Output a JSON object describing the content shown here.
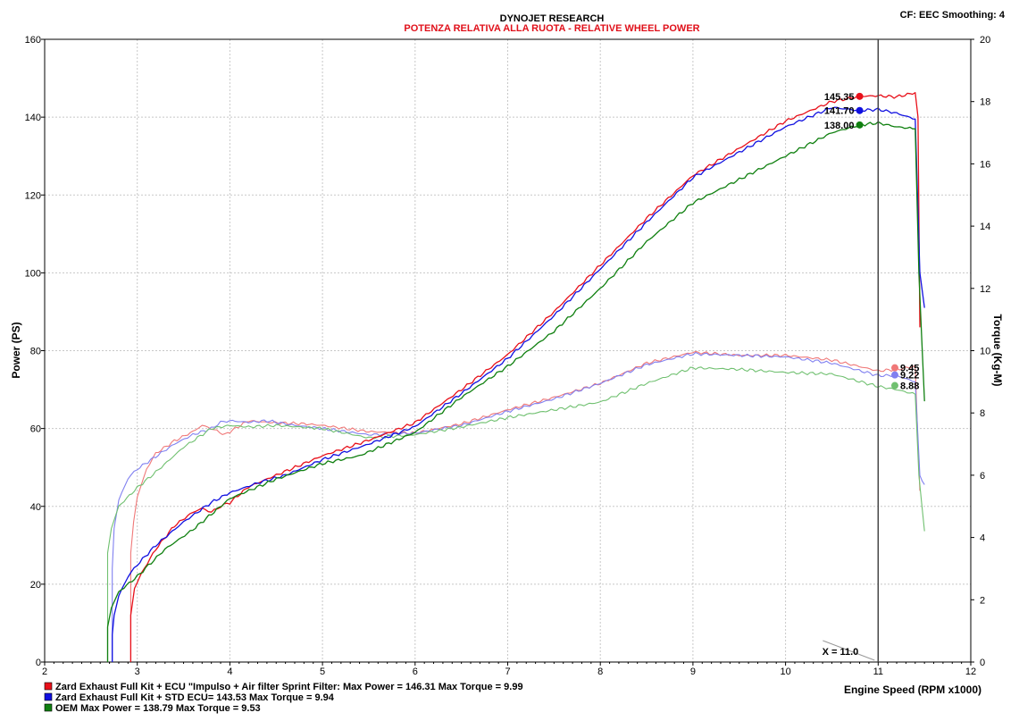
{
  "header": {
    "title": "DYNOJET RESEARCH",
    "subtitle": "POTENZA RELATIVA ALLA RUOTA - RELATIVE WHEEL POWER",
    "settings": "CF: EEC  Smoothing: 4"
  },
  "cursor_label": "X = 11.0",
  "legend": [
    {
      "text": "Zard Exhaust Full Kit + ECU \"Impulso + Air filter Sprint Filter: Max Power = 146.31    Max Torque = 9.99",
      "color": "#e8101a"
    },
    {
      "text": "Zard Exhaust Full Kit + STD ECU= 143.53    Max Torque = 9.94",
      "color": "#1010e0"
    },
    {
      "text": "OEM  Max Power = 138.79    Max Torque = 9.53",
      "color": "#108010"
    }
  ],
  "chart_data": {
    "type": "line",
    "title": "DYNOJET RESEARCH",
    "subtitle": "POTENZA RELATIVA ALLA RUOTA - RELATIVE WHEEL POWER",
    "xlabel": "Engine Speed (RPM x1000)",
    "ylabel": "Power (PS)",
    "y2label": "Torque (Kg-M)",
    "xlim": [
      2,
      12
    ],
    "ylim": [
      0,
      160
    ],
    "y2lim": [
      0,
      20
    ],
    "x_ticks": [
      2,
      3,
      4,
      5,
      6,
      7,
      8,
      9,
      10,
      11,
      12
    ],
    "y_ticks": [
      0,
      20,
      40,
      60,
      80,
      100,
      120,
      140,
      160
    ],
    "y2_ticks": [
      0,
      2,
      4,
      6,
      8,
      10,
      12,
      14,
      16,
      18,
      20
    ],
    "grid": true,
    "cursor_x": 11.0,
    "series": [
      {
        "color": "#e8101a",
        "axis": "power",
        "x": [
          2.93,
          2.93,
          2.97,
          3.05,
          3.2,
          3.4,
          3.6,
          3.7,
          3.8,
          3.9,
          4.0,
          4.2,
          4.5,
          5.0,
          5.5,
          6.0,
          6.5,
          7.0,
          7.5,
          8.0,
          8.5,
          9.0,
          9.5,
          10.0,
          10.5,
          10.8,
          11.0,
          11.2,
          11.4,
          11.43,
          11.45
        ],
        "y": [
          0,
          12,
          19,
          23,
          29,
          35,
          38.5,
          39.5,
          38.5,
          40,
          41,
          45,
          48,
          53,
          57,
          61.5,
          70,
          79,
          90,
          102,
          114,
          125,
          132,
          139,
          144,
          145.35,
          145.5,
          145.2,
          146.3,
          140,
          86
        ]
      },
      {
        "color": "#1010e0",
        "axis": "power",
        "x": [
          2.73,
          2.73,
          2.75,
          2.8,
          2.9,
          3.0,
          3.2,
          3.5,
          3.8,
          4.0,
          4.3,
          4.6,
          5.0,
          5.5,
          6.0,
          6.5,
          7.0,
          7.5,
          8.0,
          8.5,
          9.0,
          9.5,
          10.0,
          10.5,
          10.8,
          11.0,
          11.2,
          11.4,
          11.45,
          11.5
        ],
        "y": [
          0,
          7,
          12,
          17,
          22,
          25,
          30,
          36,
          41,
          43.5,
          46,
          48,
          52,
          56,
          60.5,
          69,
          78,
          89,
          101,
          113,
          124.5,
          131,
          137.5,
          142.5,
          141.7,
          142,
          141,
          139.5,
          100,
          91
        ]
      },
      {
        "color": "#108010",
        "axis": "power",
        "x": [
          2.68,
          2.68,
          2.72,
          2.8,
          3.0,
          3.3,
          3.6,
          4.0,
          4.5,
          5.0,
          5.4,
          6.0,
          6.5,
          7.0,
          7.5,
          8.0,
          8.5,
          9.0,
          9.5,
          10.0,
          10.5,
          10.8,
          11.0,
          11.2,
          11.4,
          11.44,
          11.5
        ],
        "y": [
          0,
          9,
          14,
          18,
          22,
          29,
          34,
          42,
          47,
          51,
          53,
          59,
          68,
          76,
          85,
          96,
          108,
          118,
          124,
          130,
          136,
          138,
          138.5,
          137.5,
          137,
          100,
          67
        ]
      },
      {
        "color": "#f07878",
        "axis": "torque",
        "x": [
          2.93,
          2.93,
          2.96,
          3.0,
          3.1,
          3.2,
          3.4,
          3.6,
          3.7,
          3.8,
          3.95,
          4.0,
          4.2,
          4.4,
          4.8,
          5.0,
          5.5,
          6.0,
          6.5,
          7.0,
          7.5,
          8.0,
          8.5,
          9.0,
          9.5,
          10.0,
          10.5,
          11.0,
          11.2,
          11.4,
          11.43,
          11.45
        ],
        "y": [
          0,
          3.5,
          4.5,
          5.3,
          6.2,
          6.7,
          7.1,
          7.4,
          7.6,
          7.5,
          7.3,
          7.4,
          7.75,
          7.7,
          7.65,
          7.6,
          7.4,
          7.35,
          7.65,
          8.1,
          8.5,
          8.95,
          9.6,
          9.95,
          9.85,
          9.85,
          9.7,
          9.35,
          9.4,
          9.5,
          7.0,
          5.5
        ]
      },
      {
        "color": "#8080f0",
        "axis": "torque",
        "x": [
          2.73,
          2.73,
          2.75,
          2.8,
          2.9,
          3.0,
          3.2,
          3.4,
          3.6,
          3.8,
          3.9,
          4.0,
          4.2,
          4.4,
          4.7,
          5.0,
          5.5,
          6.0,
          6.5,
          7.0,
          7.5,
          8.0,
          8.5,
          9.0,
          9.5,
          10.0,
          10.5,
          11.0,
          11.2,
          11.4,
          11.45,
          11.5
        ],
        "y": [
          0,
          3.0,
          4.3,
          5.2,
          5.9,
          6.2,
          6.6,
          7.0,
          7.3,
          7.5,
          7.7,
          7.75,
          7.7,
          7.75,
          7.6,
          7.5,
          7.3,
          7.35,
          7.6,
          8.05,
          8.45,
          8.95,
          9.55,
          9.9,
          9.85,
          9.8,
          9.6,
          9.2,
          9.2,
          9.0,
          6.0,
          5.7
        ]
      },
      {
        "color": "#70c070",
        "axis": "torque",
        "x": [
          2.68,
          2.68,
          2.72,
          2.8,
          3.0,
          3.2,
          3.5,
          3.8,
          4.0,
          4.2,
          4.5,
          5.0,
          5.5,
          6.0,
          6.5,
          7.0,
          7.5,
          8.0,
          8.5,
          9.0,
          9.5,
          10.0,
          10.5,
          11.0,
          11.2,
          11.4,
          11.44,
          11.5
        ],
        "y": [
          0,
          3.5,
          4.3,
          5.0,
          5.6,
          6.1,
          6.9,
          7.5,
          7.6,
          7.55,
          7.6,
          7.5,
          7.2,
          7.3,
          7.55,
          7.85,
          8.1,
          8.35,
          8.95,
          9.45,
          9.4,
          9.3,
          9.25,
          8.85,
          8.75,
          8.6,
          6.0,
          4.2
        ]
      }
    ],
    "markers": [
      {
        "axis": "power",
        "x": 10.8,
        "y": 145.35,
        "label": "145.35",
        "color": "#e8101a"
      },
      {
        "axis": "power",
        "x": 10.8,
        "y": 141.7,
        "label": "141.70",
        "color": "#1010e0"
      },
      {
        "axis": "power",
        "x": 10.8,
        "y": 138.0,
        "label": "138.00",
        "color": "#108010"
      },
      {
        "axis": "torque",
        "x": 11.18,
        "y": 9.45,
        "label": "9.45",
        "color": "#f07878"
      },
      {
        "axis": "torque",
        "x": 11.18,
        "y": 9.22,
        "label": "9.22",
        "color": "#8080f0"
      },
      {
        "axis": "torque",
        "x": 11.18,
        "y": 8.88,
        "label": "8.88",
        "color": "#70c070"
      }
    ]
  }
}
